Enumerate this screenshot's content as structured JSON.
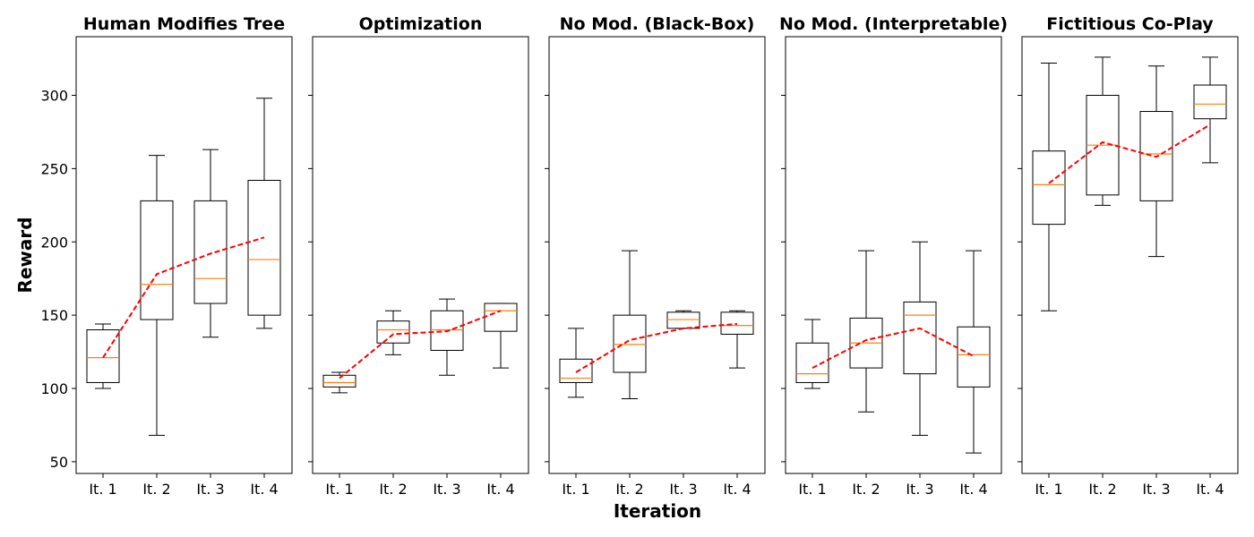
{
  "chart_data": {
    "type": "box",
    "xlabel": "Iteration",
    "ylabel": "Reward",
    "ylim": [
      42,
      340
    ],
    "yticks": [
      50,
      100,
      150,
      200,
      250,
      300
    ],
    "categories": [
      "It. 1",
      "It. 2",
      "It. 3",
      "It. 4"
    ],
    "colors": {
      "box": "#000000",
      "median": "#ff7f0e",
      "mean_line": "#ff0000"
    },
    "shared_y": true,
    "panels": [
      {
        "title": "Human Modifies Tree",
        "boxes": [
          {
            "whisker_low": 100,
            "q1": 104,
            "median": 121,
            "q3": 140,
            "whisker_high": 144
          },
          {
            "whisker_low": 68,
            "q1": 147,
            "median": 171,
            "q3": 228,
            "whisker_high": 259
          },
          {
            "whisker_low": 135,
            "q1": 158,
            "median": 175,
            "q3": 228,
            "whisker_high": 263
          },
          {
            "whisker_low": 141,
            "q1": 150,
            "median": 188,
            "q3": 242,
            "whisker_high": 298
          }
        ],
        "mean": [
          121,
          178,
          192,
          203
        ]
      },
      {
        "title": "Optimization",
        "boxes": [
          {
            "whisker_low": 97,
            "q1": 101,
            "median": 104,
            "q3": 109,
            "whisker_high": 111
          },
          {
            "whisker_low": 123,
            "q1": 131,
            "median": 140,
            "q3": 146,
            "whisker_high": 153
          },
          {
            "whisker_low": 109,
            "q1": 126,
            "median": 140,
            "q3": 153,
            "whisker_high": 161
          },
          {
            "whisker_low": 114,
            "q1": 139,
            "median": 153,
            "q3": 158,
            "whisker_high": 158
          }
        ],
        "mean": [
          107,
          137,
          139,
          153
        ]
      },
      {
        "title": "No Mod. (Black-Box)",
        "boxes": [
          {
            "whisker_low": 94,
            "q1": 104,
            "median": 107,
            "q3": 120,
            "whisker_high": 141
          },
          {
            "whisker_low": 93,
            "q1": 111,
            "median": 130,
            "q3": 150,
            "whisker_high": 194
          },
          {
            "whisker_low": 141,
            "q1": 141,
            "median": 147,
            "q3": 152,
            "whisker_high": 153
          },
          {
            "whisker_low": 114,
            "q1": 137,
            "median": 143,
            "q3": 152,
            "whisker_high": 153
          }
        ],
        "mean": [
          111,
          133,
          141,
          144
        ]
      },
      {
        "title": "No Mod. (Interpretable)",
        "boxes": [
          {
            "whisker_low": 100,
            "q1": 104,
            "median": 110,
            "q3": 131,
            "whisker_high": 147
          },
          {
            "whisker_low": 84,
            "q1": 114,
            "median": 131,
            "q3": 148,
            "whisker_high": 194
          },
          {
            "whisker_low": 68,
            "q1": 110,
            "median": 150,
            "q3": 159,
            "whisker_high": 200
          },
          {
            "whisker_low": 56,
            "q1": 101,
            "median": 123,
            "q3": 142,
            "whisker_high": 194
          }
        ],
        "mean": [
          114,
          133,
          141,
          122
        ]
      },
      {
        "title": "Fictitious Co-Play",
        "boxes": [
          {
            "whisker_low": 153,
            "q1": 212,
            "median": 239,
            "q3": 262,
            "whisker_high": 322
          },
          {
            "whisker_low": 225,
            "q1": 232,
            "median": 266,
            "q3": 300,
            "whisker_high": 326
          },
          {
            "whisker_low": 190,
            "q1": 228,
            "median": 260,
            "q3": 289,
            "whisker_high": 320
          },
          {
            "whisker_low": 254,
            "q1": 284,
            "median": 294,
            "q3": 307,
            "whisker_high": 326
          }
        ],
        "mean": [
          240,
          268,
          258,
          280
        ]
      }
    ]
  }
}
